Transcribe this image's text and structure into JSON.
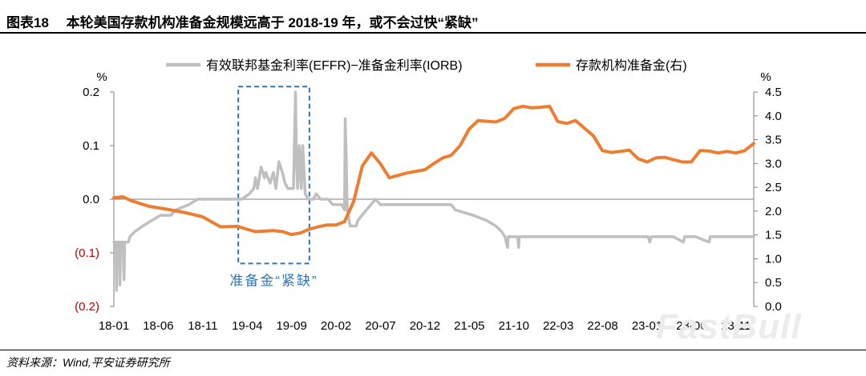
{
  "header": {
    "title": "图表18　 本轮美国存款机构准备金规模远高于 2018-19 年，或不会过快“紧缺”"
  },
  "footer": {
    "source": "资料来源：Wind,平安证券研究所"
  },
  "watermark": {
    "text": "FastBull"
  },
  "colors": {
    "gray_series": "#bfbfbf",
    "orange_series": "#ed7d31",
    "negative_tick": "#c00000",
    "annotation": "#2e75b6",
    "axis": "#7f7f7f"
  },
  "chart_data": {
    "type": "line",
    "x_tick_labels": [
      "18-01",
      "18-06",
      "18-11",
      "19-04",
      "19-09",
      "20-02",
      "20-07",
      "20-12",
      "21-05",
      "21-10",
      "22-03",
      "22-08",
      "23-01",
      "23-06",
      "23-11"
    ],
    "x_range": [
      "2018-01",
      "2024-01"
    ],
    "left_axis": {
      "unit_label": "%",
      "ylim": [
        -0.2,
        0.2
      ],
      "ticks": [
        0.2,
        0.1,
        0.0,
        -0.1,
        -0.2
      ],
      "tick_labels": [
        "0.2",
        "0.1",
        "0.0",
        "(0.1)",
        "(0.2)"
      ]
    },
    "right_axis": {
      "unit_label": "%",
      "ylim": [
        0.0,
        4.5
      ],
      "ticks": [
        4.5,
        4.0,
        3.5,
        3.0,
        2.5,
        2.0,
        1.5,
        1.0,
        0.5,
        0.0
      ],
      "tick_labels": [
        "4.5",
        "4.0",
        "3.5",
        "3.0",
        "2.5",
        "2.0",
        "1.5",
        "1.0",
        "0.5",
        "0.0"
      ]
    },
    "annotation": {
      "text": "准备金“紧缺”",
      "x_range": [
        "2019-03",
        "2019-11"
      ],
      "y_range_left": [
        -0.12,
        0.21
      ]
    },
    "legend_placement": "top",
    "series": [
      {
        "name": "有效联邦基金利率(EFFR)−准备金利率(IORB)",
        "axis": "left",
        "color": "#bfbfbf",
        "points": [
          [
            "2018-01-01",
            -0.08
          ],
          [
            "2018-01-08",
            -0.08
          ],
          [
            "2018-01-10",
            -0.17
          ],
          [
            "2018-01-12",
            -0.08
          ],
          [
            "2018-01-20",
            -0.08
          ],
          [
            "2018-01-22",
            -0.16
          ],
          [
            "2018-01-24",
            -0.08
          ],
          [
            "2018-02-01",
            -0.08
          ],
          [
            "2018-02-05",
            -0.15
          ],
          [
            "2018-02-07",
            -0.08
          ],
          [
            "2018-02-20",
            -0.08
          ],
          [
            "2018-02-25",
            -0.07
          ],
          [
            "2018-03-15",
            -0.06
          ],
          [
            "2018-04-10",
            -0.05
          ],
          [
            "2018-05-10",
            -0.04
          ],
          [
            "2018-06-10",
            -0.03
          ],
          [
            "2018-07-15",
            -0.03
          ],
          [
            "2018-08-01",
            -0.02
          ],
          [
            "2018-09-15",
            -0.01
          ],
          [
            "2018-10-15",
            0.0
          ],
          [
            "2018-12-01",
            0.0
          ],
          [
            "2019-01-15",
            0.0
          ],
          [
            "2019-03-15",
            0.0
          ],
          [
            "2019-04-10",
            0.01
          ],
          [
            "2019-04-25",
            0.02
          ],
          [
            "2019-05-01",
            0.04
          ],
          [
            "2019-05-08",
            0.02
          ],
          [
            "2019-05-20",
            0.06
          ],
          [
            "2019-06-01",
            0.04
          ],
          [
            "2019-06-05",
            0.05
          ],
          [
            "2019-06-20",
            0.03
          ],
          [
            "2019-07-01",
            0.05
          ],
          [
            "2019-07-10",
            0.02
          ],
          [
            "2019-07-20",
            0.07
          ],
          [
            "2019-08-01",
            0.05
          ],
          [
            "2019-08-10",
            0.03
          ],
          [
            "2019-08-20",
            0.02
          ],
          [
            "2019-09-08",
            0.02
          ],
          [
            "2019-09-15",
            0.2
          ],
          [
            "2019-09-18",
            0.08
          ],
          [
            "2019-09-22",
            0.02
          ],
          [
            "2019-09-28",
            0.1
          ],
          [
            "2019-10-05",
            0.02
          ],
          [
            "2019-10-10",
            0.1
          ],
          [
            "2019-10-18",
            0.01
          ],
          [
            "2019-10-28",
            0.0
          ],
          [
            "2019-11-15",
            0.0
          ],
          [
            "2019-11-25",
            0.01
          ],
          [
            "2019-12-10",
            0.0
          ],
          [
            "2020-01-05",
            0.0
          ],
          [
            "2020-01-20",
            -0.01
          ],
          [
            "2020-02-20",
            -0.01
          ],
          [
            "2020-03-01",
            -0.02
          ],
          [
            "2020-03-03",
            0.15
          ],
          [
            "2020-03-06",
            0.09
          ],
          [
            "2020-03-10",
            -0.02
          ],
          [
            "2020-03-20",
            -0.05
          ],
          [
            "2020-04-10",
            -0.05
          ],
          [
            "2020-04-15",
            -0.04
          ],
          [
            "2020-05-15",
            -0.02
          ],
          [
            "2020-06-15",
            0.0
          ],
          [
            "2020-07-01",
            -0.01
          ],
          [
            "2020-09-01",
            -0.01
          ],
          [
            "2020-12-01",
            -0.01
          ],
          [
            "2021-03-01",
            -0.01
          ],
          [
            "2021-03-15",
            -0.02
          ],
          [
            "2021-05-15",
            -0.03
          ],
          [
            "2021-07-01",
            -0.04
          ],
          [
            "2021-08-01",
            -0.05
          ],
          [
            "2021-08-20",
            -0.06
          ],
          [
            "2021-09-01",
            -0.07
          ],
          [
            "2021-09-10",
            -0.09
          ],
          [
            "2021-09-12",
            -0.07
          ],
          [
            "2021-10-15",
            -0.07
          ],
          [
            "2021-10-18",
            -0.09
          ],
          [
            "2021-10-20",
            -0.07
          ],
          [
            "2022-03-15",
            -0.07
          ],
          [
            "2022-07-01",
            -0.07
          ],
          [
            "2022-10-01",
            -0.07
          ],
          [
            "2023-01-05",
            -0.07
          ],
          [
            "2023-01-10",
            -0.08
          ],
          [
            "2023-01-15",
            -0.07
          ],
          [
            "2023-04-01",
            -0.07
          ],
          [
            "2023-05-05",
            -0.08
          ],
          [
            "2023-05-10",
            -0.07
          ],
          [
            "2023-06-15",
            -0.07
          ],
          [
            "2023-08-01",
            -0.08
          ],
          [
            "2023-08-05",
            -0.07
          ],
          [
            "2023-12-01",
            -0.07
          ],
          [
            "2024-01-01",
            -0.07
          ]
        ]
      },
      {
        "name": "存款机构准备金(右)",
        "axis": "right",
        "color": "#ed7d31",
        "points": [
          [
            "2018-01-01",
            2.28
          ],
          [
            "2018-02-01",
            2.3
          ],
          [
            "2018-03-01",
            2.22
          ],
          [
            "2018-05-01",
            2.1
          ],
          [
            "2018-07-01",
            2.04
          ],
          [
            "2018-09-01",
            1.97
          ],
          [
            "2018-11-01",
            1.88
          ],
          [
            "2019-01-01",
            1.67
          ],
          [
            "2019-03-01",
            1.68
          ],
          [
            "2019-04-01",
            1.62
          ],
          [
            "2019-05-01",
            1.57
          ],
          [
            "2019-07-01",
            1.59
          ],
          [
            "2019-08-01",
            1.57
          ],
          [
            "2019-09-01",
            1.51
          ],
          [
            "2019-10-01",
            1.54
          ],
          [
            "2019-11-01",
            1.62
          ],
          [
            "2019-12-01",
            1.67
          ],
          [
            "2020-01-01",
            1.71
          ],
          [
            "2020-02-01",
            1.71
          ],
          [
            "2020-03-01",
            1.78
          ],
          [
            "2020-04-01",
            2.2
          ],
          [
            "2020-05-01",
            2.95
          ],
          [
            "2020-06-01",
            3.22
          ],
          [
            "2020-07-01",
            3.0
          ],
          [
            "2020-08-01",
            2.7
          ],
          [
            "2020-10-01",
            2.8
          ],
          [
            "2020-12-01",
            2.87
          ],
          [
            "2021-01-01",
            3.0
          ],
          [
            "2021-02-01",
            3.12
          ],
          [
            "2021-03-01",
            3.17
          ],
          [
            "2021-04-01",
            3.38
          ],
          [
            "2021-05-01",
            3.72
          ],
          [
            "2021-06-01",
            3.9
          ],
          [
            "2021-08-01",
            3.87
          ],
          [
            "2021-09-01",
            3.95
          ],
          [
            "2021-10-01",
            4.15
          ],
          [
            "2021-11-01",
            4.2
          ],
          [
            "2021-12-01",
            4.17
          ],
          [
            "2022-01-01",
            4.18
          ],
          [
            "2022-02-01",
            4.2
          ],
          [
            "2022-03-01",
            3.88
          ],
          [
            "2022-04-01",
            3.84
          ],
          [
            "2022-05-01",
            3.9
          ],
          [
            "2022-07-01",
            3.58
          ],
          [
            "2022-08-01",
            3.27
          ],
          [
            "2022-09-01",
            3.23
          ],
          [
            "2022-11-01",
            3.28
          ],
          [
            "2022-12-01",
            3.1
          ],
          [
            "2023-01-01",
            3.03
          ],
          [
            "2023-02-01",
            3.12
          ],
          [
            "2023-03-01",
            3.13
          ],
          [
            "2023-04-01",
            3.08
          ],
          [
            "2023-05-01",
            3.03
          ],
          [
            "2023-06-01",
            3.03
          ],
          [
            "2023-07-01",
            3.27
          ],
          [
            "2023-08-01",
            3.26
          ],
          [
            "2023-09-01",
            3.22
          ],
          [
            "2023-10-01",
            3.25
          ],
          [
            "2023-11-01",
            3.22
          ],
          [
            "2023-12-01",
            3.27
          ],
          [
            "2024-01-01",
            3.42
          ]
        ]
      }
    ]
  }
}
